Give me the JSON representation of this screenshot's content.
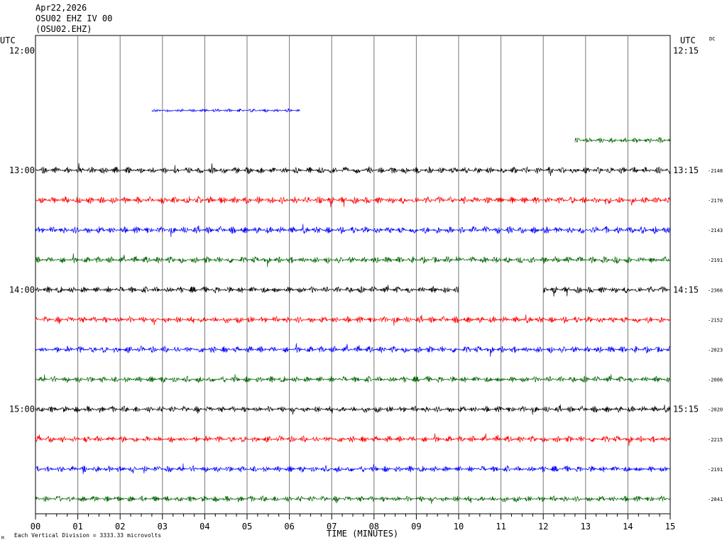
{
  "header": {
    "date": "Apr22,2026",
    "station_line": "OSU02 EHZ IV 00",
    "station_code": "(OSU02.EHZ)"
  },
  "labels": {
    "utc_left": "UTC",
    "utc_right": "UTC",
    "dc": "DC",
    "xaxis_title": "TIME (MINUTES)",
    "footer_note": "Each Vertical Division = 3333.33 microvolts",
    "corner_mark": "M"
  },
  "chart_data": {
    "type": "line",
    "title": "",
    "xlabel": "TIME (MINUTES)",
    "xlim": [
      0,
      15
    ],
    "x_ticks": [
      "00",
      "01",
      "02",
      "03",
      "04",
      "05",
      "06",
      "07",
      "08",
      "09",
      "10",
      "11",
      "12",
      "13",
      "14",
      "15"
    ],
    "row_time_labels": [
      {
        "row": 0,
        "left": "12:00",
        "right": "12:15"
      },
      {
        "row": 4,
        "left": "13:00",
        "right": "13:15"
      },
      {
        "row": 8,
        "left": "14:00",
        "right": "14:15"
      },
      {
        "row": 12,
        "left": "15:00",
        "right": "15:15"
      }
    ],
    "colors": [
      "#000000",
      "#ff0000",
      "#0000ff",
      "#006400"
    ],
    "traces": [
      {
        "row": 0,
        "color": "#000000",
        "segments": [],
        "dc": ""
      },
      {
        "row": 1,
        "color": "#ff0000",
        "segments": [],
        "dc": ""
      },
      {
        "row": 2,
        "color": "#0000ff",
        "segments": [
          [
            2.75,
            6.25
          ]
        ],
        "amplitude": 0.22,
        "dc": ""
      },
      {
        "row": 3,
        "color": "#006400",
        "segments": [
          [
            12.75,
            15
          ]
        ],
        "amplitude": 0.35,
        "dc": ""
      },
      {
        "row": 4,
        "color": "#000000",
        "segments": [
          [
            0,
            15
          ]
        ],
        "amplitude": 0.42,
        "dc": "-2148"
      },
      {
        "row": 5,
        "color": "#ff0000",
        "segments": [
          [
            0,
            15
          ]
        ],
        "amplitude": 0.45,
        "dc": "-2170"
      },
      {
        "row": 6,
        "color": "#0000ff",
        "segments": [
          [
            0,
            15
          ]
        ],
        "amplitude": 0.45,
        "dc": "-2143"
      },
      {
        "row": 7,
        "color": "#006400",
        "segments": [
          [
            0,
            15
          ]
        ],
        "amplitude": 0.42,
        "dc": "-2191"
      },
      {
        "row": 8,
        "color": "#000000",
        "segments": [
          [
            0,
            10
          ],
          [
            12,
            15
          ]
        ],
        "amplitude": 0.42,
        "dc": "-2366"
      },
      {
        "row": 9,
        "color": "#ff0000",
        "segments": [
          [
            0,
            15
          ]
        ],
        "amplitude": 0.42,
        "dc": "-2152"
      },
      {
        "row": 10,
        "color": "#0000ff",
        "segments": [
          [
            0,
            15
          ]
        ],
        "amplitude": 0.42,
        "dc": "-2023"
      },
      {
        "row": 11,
        "color": "#006400",
        "segments": [
          [
            0,
            15
          ]
        ],
        "amplitude": 0.4,
        "dc": "-2006"
      },
      {
        "row": 12,
        "color": "#000000",
        "segments": [
          [
            0,
            15
          ]
        ],
        "amplitude": 0.4,
        "dc": "-2020"
      },
      {
        "row": 13,
        "color": "#ff0000",
        "segments": [
          [
            0,
            15
          ]
        ],
        "amplitude": 0.4,
        "dc": "-2215"
      },
      {
        "row": 14,
        "color": "#0000ff",
        "segments": [
          [
            0,
            15
          ]
        ],
        "amplitude": 0.4,
        "dc": "-2191"
      },
      {
        "row": 15,
        "color": "#006400",
        "segments": [
          [
            0,
            15
          ]
        ],
        "amplitude": 0.38,
        "dc": "-2041"
      }
    ],
    "grid": true,
    "legend": "none"
  }
}
